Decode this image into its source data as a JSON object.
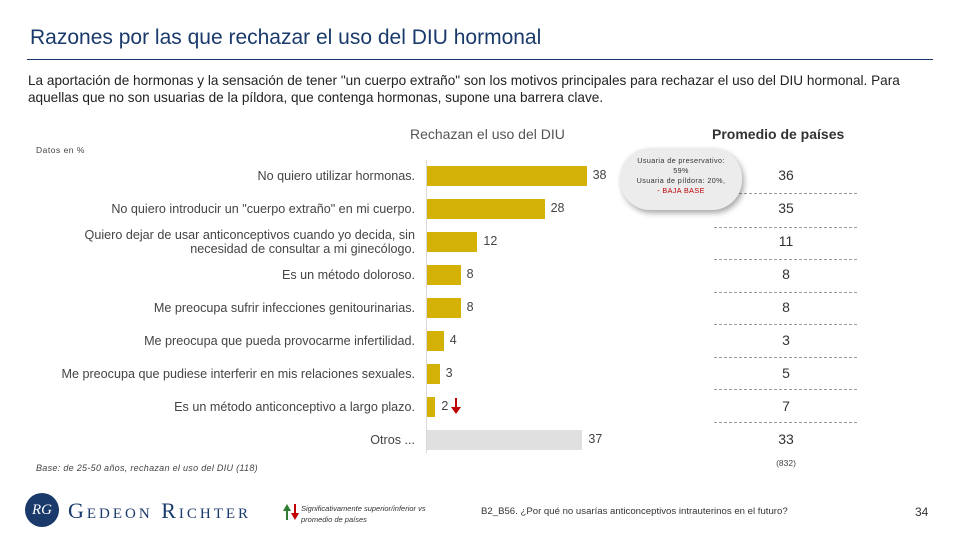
{
  "header": {
    "title": "Razones por las que rechazar el uso del DIU hormonal",
    "subtitle": "La aportación de hormonas y la sensación de tener \"un cuerpo extraño\" son los motivos principales para rechazar el uso del DIU hormonal. Para aquellas que no son usuarias de la píldora, que contenga hormonas, supone una barrera clave."
  },
  "chart_data": {
    "type": "bar",
    "orientation": "horizontal",
    "title": "Rechazan el uso del DIU",
    "units_label": "Datos en %",
    "categories": [
      "No quiero utilizar hormonas.",
      "No quiero introducir un \"cuerpo extraño\" en mi cuerpo.",
      "Quiero dejar de usar anticonceptivos cuando yo decida, sin necesidad de consultar a mi ginecólogo.",
      "Es un método doloroso.",
      "Me preocupa sufrir infecciones genitourinarias.",
      "Me preocupa que pueda provocarme infertilidad.",
      "Me preocupa que pudiese interferir en mis relaciones sexuales.",
      "Es un método anticonceptivo a largo plazo.",
      "Otros ..."
    ],
    "values": [
      38,
      28,
      12,
      8,
      8,
      4,
      3,
      2,
      37
    ],
    "value_labels": [
      "38",
      "28",
      "12",
      "8",
      "8",
      "4",
      "3",
      "2",
      "37"
    ],
    "bar_colors": [
      "#d4b106",
      "#d4b106",
      "#d4b106",
      "#d4b106",
      "#d4b106",
      "#d4b106",
      "#d4b106",
      "#d4b106",
      "#e0e0e0"
    ],
    "xlim": [
      0,
      40
    ],
    "significance_down_index": 7,
    "comparison": {
      "title": "Promedio de países",
      "values": [
        "36",
        "35",
        "11",
        "8",
        "8",
        "3",
        "5",
        "7",
        "33"
      ],
      "base_n": "(832)"
    },
    "callout": {
      "line1": "Usuaria de preservativo:",
      "line2": "59%",
      "line3": "Usuaria de píldora: 20%,",
      "line4": "- BAJA BASE"
    }
  },
  "colors": {
    "accent": "#d4b106",
    "other_bar": "#e0e0e0",
    "title_blue": "#1a3a6b",
    "down_arrow": "#c00000",
    "up_arrow": "#2e7d32"
  },
  "footer": {
    "base": "Base: de 25-50 años, rechazan el uso del DIU (118)",
    "logo_mark": "RG",
    "logo_text": "Gedeon Richter",
    "legend": "Significativamente superior/inferior vs promedio de países",
    "footnote": "B2_B56. ¿Por qué no usarías anticonceptivos intrauterinos en el futuro?",
    "page": "34"
  }
}
